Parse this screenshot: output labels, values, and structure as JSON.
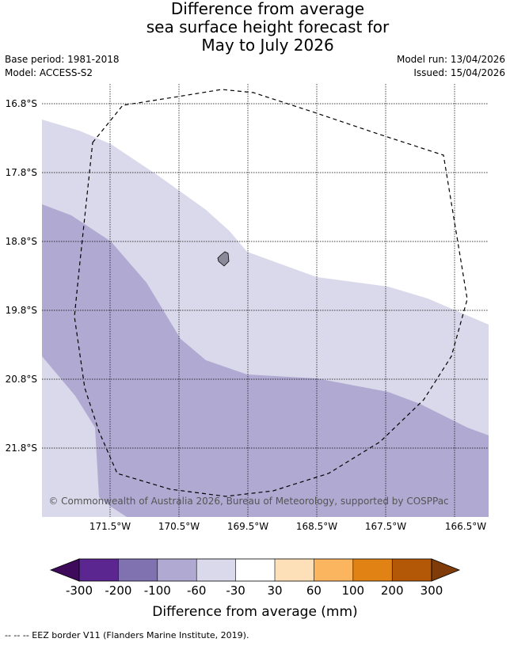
{
  "title": {
    "line1": "Difference from average",
    "line2": "sea surface height forecast for",
    "line3": "May to July 2026"
  },
  "meta": {
    "base_period": "Base period: 1981-2018",
    "model": "Model: ACCESS-S2",
    "model_run": "Model run: 13/04/2026",
    "issued": "Issued: 15/04/2026"
  },
  "map": {
    "lat_labels": [
      "16.8°S",
      "17.8°S",
      "18.8°S",
      "19.8°S",
      "20.8°S",
      "21.8°S"
    ],
    "lon_labels": [
      "171.5°W",
      "170.5°W",
      "169.5°W",
      "168.5°W",
      "167.5°W",
      "166.5°W"
    ],
    "copyright": "© Commonwealth of Australia 2026, Bureau of Meteorology, supported by COSPPac",
    "colors": {
      "band_-60_-30": "#d9d9eb",
      "band_-100_-60": "#b0aad2",
      "island": "#8a8a9a"
    }
  },
  "colorbar": {
    "tick_labels": [
      "-300",
      "-200",
      "-100",
      "-60",
      "-30",
      "30",
      "60",
      "100",
      "200",
      "300"
    ],
    "label": "Difference from average (mm)",
    "colors": [
      "#3e0a5c",
      "#5c2690",
      "#8072b0",
      "#b0aad2",
      "#d9d9eb",
      "#ffffff",
      "#fde0b8",
      "#fbb55e",
      "#e08214",
      "#b35806",
      "#7f3b08"
    ]
  },
  "footer": {
    "text": "--  --  -- EEZ border V11 (Flanders Marine Institute, 2019)."
  }
}
